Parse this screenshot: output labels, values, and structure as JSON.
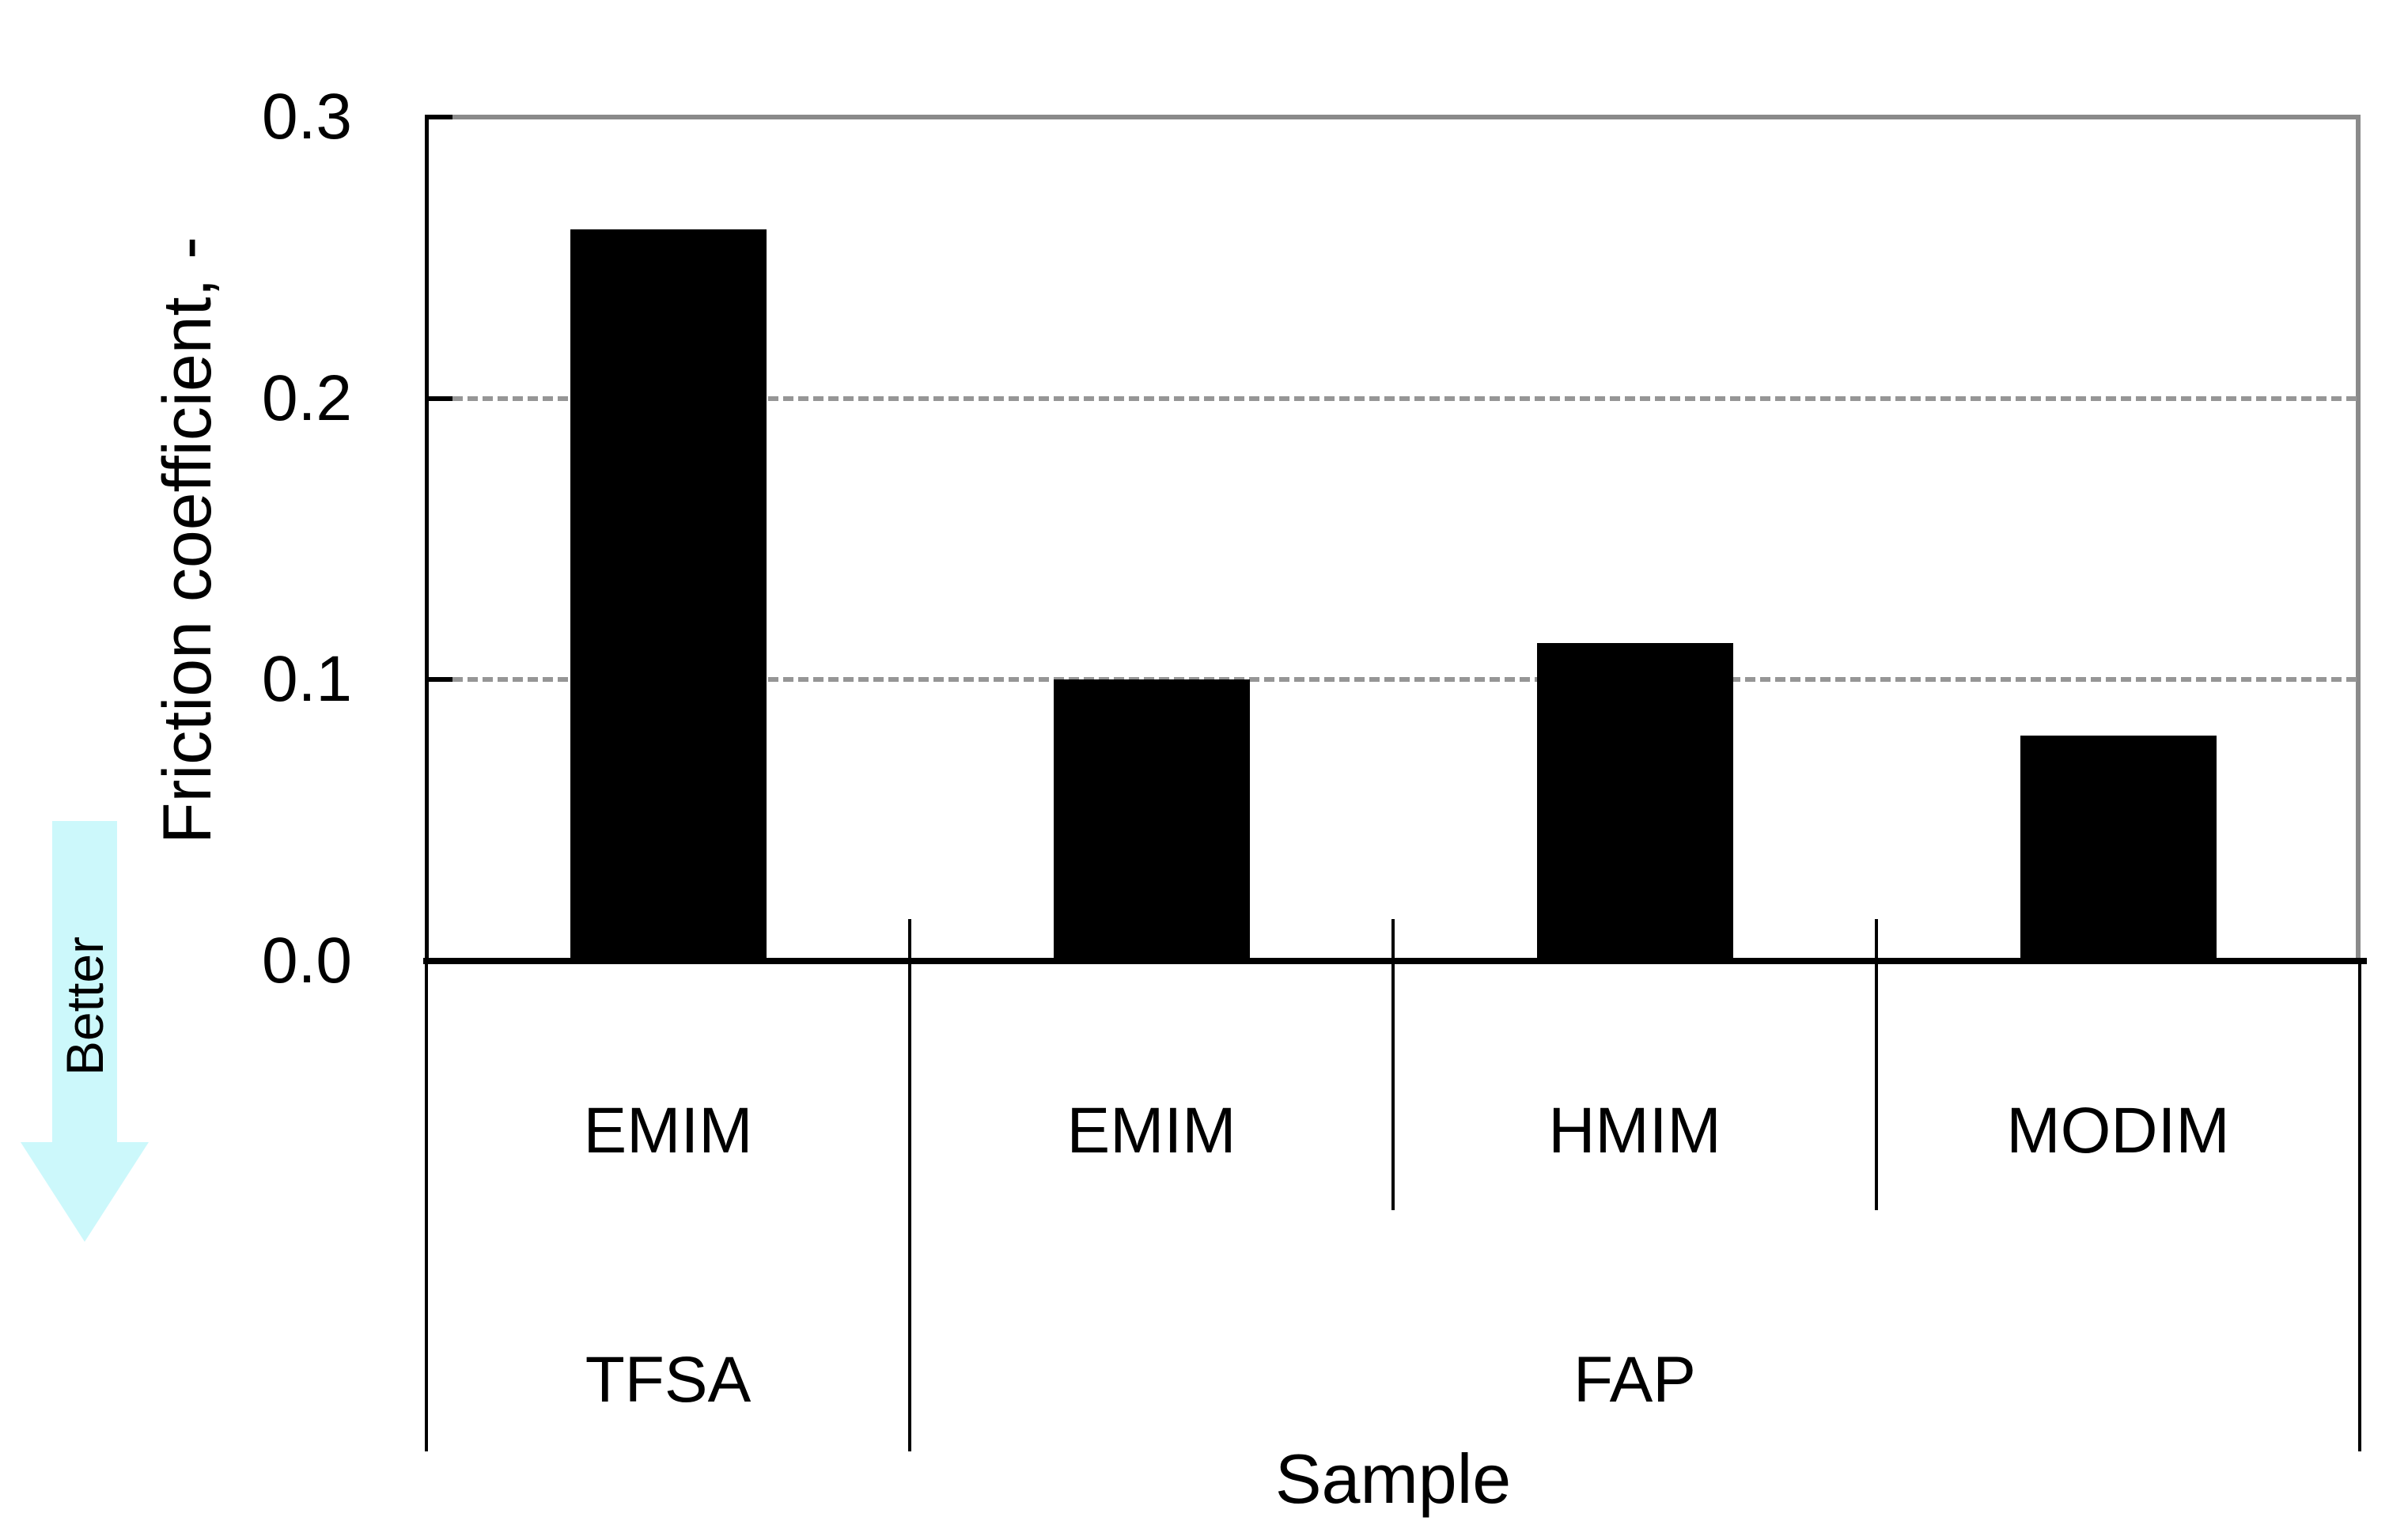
{
  "chart_data": {
    "type": "bar",
    "title": "",
    "xlabel": "Sample",
    "ylabel": "Friction coefficient, -",
    "ylim": [
      0,
      0.3
    ],
    "ytick_labels": [
      "0.0",
      "0.1",
      "0.2",
      "0.3"
    ],
    "grid_values": [
      0.1,
      0.2
    ],
    "grid_style": "dashed",
    "legend_position": "none",
    "categories": [
      "EMIM",
      "EMIM",
      "HMIM",
      "MODIM"
    ],
    "values": [
      0.26,
      0.1,
      0.113,
      0.08
    ],
    "groups": [
      {
        "label": "TFSA",
        "start": 0,
        "count": 1
      },
      {
        "label": "FAP",
        "start": 1,
        "count": 3
      }
    ],
    "bar_color": "#000000"
  },
  "annotations": {
    "better_label": "Better",
    "arrow_direction": "down",
    "arrow_color": "#CCF8FB"
  },
  "colors": {
    "frame_gray": "#8a8a8a",
    "grid_gray": "#969696",
    "text_black": "#000000",
    "background": "#ffffff"
  }
}
